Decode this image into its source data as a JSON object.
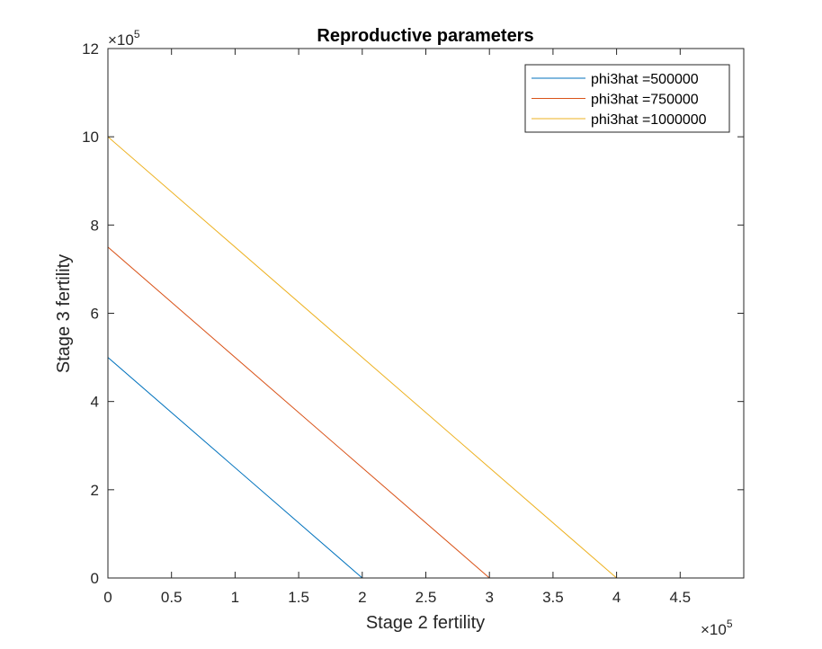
{
  "chart_data": {
    "type": "line",
    "title": "Reproductive parameters",
    "xlabel": "Stage 2 fertility",
    "ylabel": "Stage 3 fertility",
    "xlim": [
      0,
      5
    ],
    "ylim": [
      0,
      12
    ],
    "x_multiplier": "×10",
    "x_exponent": "5",
    "y_multiplier": "×10",
    "y_exponent": "5",
    "x_ticks": [
      0,
      0.5,
      1,
      1.5,
      2,
      2.5,
      3,
      3.5,
      4,
      4.5
    ],
    "x_tick_labels": [
      "0",
      "0.5",
      "1",
      "1.5",
      "2",
      "2.5",
      "3",
      "3.5",
      "4",
      "4.5"
    ],
    "y_ticks": [
      0,
      2,
      4,
      6,
      8,
      10,
      12
    ],
    "y_tick_labels": [
      "0",
      "2",
      "4",
      "6",
      "8",
      "10",
      "12"
    ],
    "grid": false,
    "legend_position": "top-right",
    "series": [
      {
        "name": "phi3hat =500000",
        "color": "#0072BD",
        "x": [
          0,
          2,
          5
        ],
        "y": [
          5,
          0,
          0
        ]
      },
      {
        "name": "phi3hat =750000",
        "color": "#D95319",
        "x": [
          0,
          3,
          5
        ],
        "y": [
          7.5,
          0,
          0
        ]
      },
      {
        "name": "phi3hat =1000000",
        "color": "#EDB120",
        "x": [
          0,
          4,
          5
        ],
        "y": [
          10,
          0,
          0
        ]
      }
    ]
  }
}
